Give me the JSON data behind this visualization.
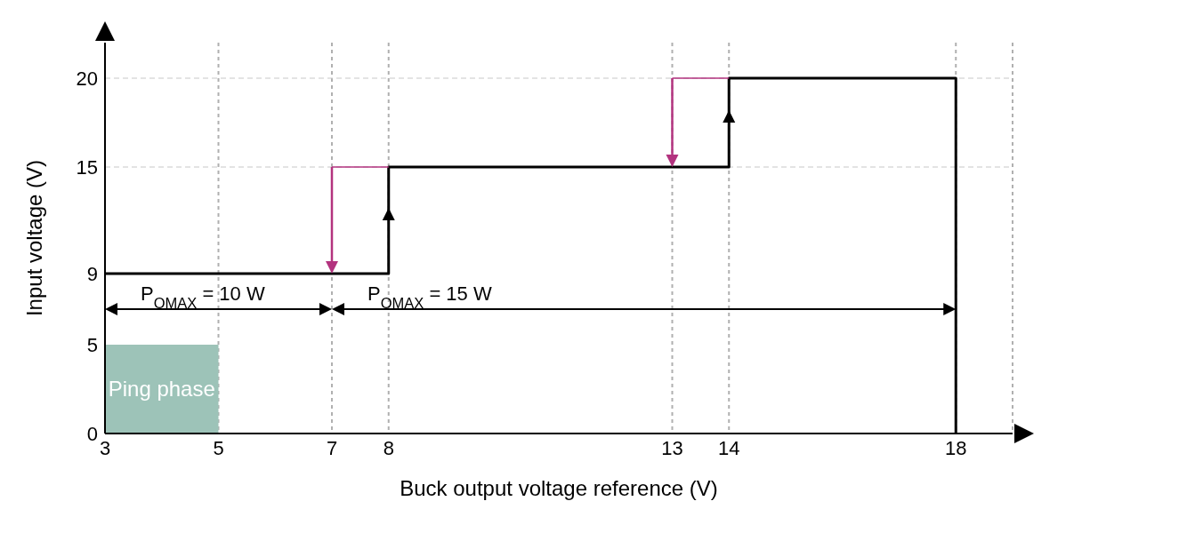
{
  "chart_data": {
    "type": "step",
    "xlabel": "Buck output voltage reference (V)",
    "ylabel": "Input voltage (V)",
    "xlim": [
      3,
      19
    ],
    "xticks": [
      3,
      5,
      7,
      8,
      13,
      14,
      18
    ],
    "ylim": [
      0,
      22
    ],
    "yticks": [
      0,
      5,
      9,
      15,
      20
    ],
    "grid": "x",
    "marker": "none",
    "line_style": "solid",
    "series": [
      {
        "type": "area",
        "name": "Ping phase",
        "color": "#9dc3b8",
        "x": [
          3,
          5
        ],
        "values": [
          5,
          5
        ]
      },
      {
        "color": "#000000",
        "x": [
          3,
          8,
          14,
          18,
          18
        ],
        "values": [
          9,
          15,
          20,
          20,
          0
        ]
      }
    ],
    "ref_lines": [
      {
        "axis": "y",
        "value": 15,
        "color": "#c8c8c8",
        "line_style": "dashed"
      },
      {
        "axis": "y",
        "value": 20,
        "color": "#c8c8c8",
        "line_style": "dashed"
      }
    ],
    "annotations": [
      "P$_{OMAX}$ = 10 W",
      "P$_{OMAX}$ = 15 W"
    ]
  }
}
